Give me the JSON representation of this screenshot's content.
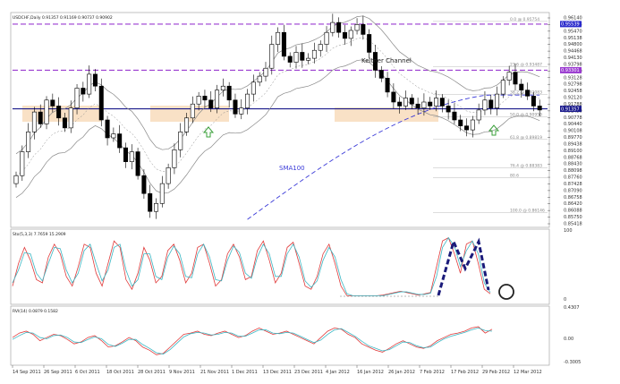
{
  "chart_data": [
    {
      "type": "candlestick",
      "title": "USDCHF,Daily  0.91357 0.91169 0.90737 0.90902",
      "y_ticks": [
        "0.96140",
        "0.95808",
        "0.95470",
        "0.95138",
        "0.94800",
        "0.94468",
        "0.94130",
        "0.93798",
        "0.93460",
        "0.93128",
        "0.92798",
        "0.92458",
        "0.92120",
        "0.91788",
        "0.91450",
        "0.90778",
        "0.90440",
        "0.90108",
        "0.89770",
        "0.89438",
        "0.89100",
        "0.88768",
        "0.88430",
        "0.88098",
        "0.87760",
        "0.87428",
        "0.87090",
        "0.86758",
        "0.86420",
        "0.86088",
        "0.85750",
        "0.85418"
      ],
      "ylim": [
        0.854,
        0.962
      ],
      "price_labels": [
        {
          "text": "0.95539",
          "color": "#2b2bcc"
        },
        {
          "text": "0.93301",
          "color": "#9a3bd0"
        },
        {
          "text": "0.91357",
          "color": "#1b1b8c"
        }
      ],
      "fib_levels": [
        {
          "label": "0.0 @ 0.95754",
          "value": 0.95754
        },
        {
          "label": "23.6 @ 0.93487",
          "value": 0.93487
        },
        {
          "label": "38.2 @ 0.92083",
          "value": 0.92083
        },
        {
          "label": "50.0 @ 0.90950",
          "value": 0.9095
        },
        {
          "label": "61.8 @ 0.89819",
          "value": 0.89819
        },
        {
          "label": "76.4 @ 0.88383",
          "value": 0.88383
        },
        {
          "label": "80.6",
          "value": 0.879
        },
        {
          "label": "100.0 @ 0.86146",
          "value": 0.86146
        }
      ],
      "horizontal_lines": [
        {
          "name": "upper-dashed",
          "value": 0.9562,
          "color": "#9a3bd0"
        },
        {
          "name": "middle-dashed",
          "value": 0.933,
          "color": "#9a3bd0"
        },
        {
          "name": "solid-support",
          "value": 0.9136,
          "color": "#1b1b8c"
        }
      ],
      "annotations": {
        "keltner": "Keltner Channel",
        "sma": "SMA100"
      },
      "series": {
        "close": [
          0.88,
          0.892,
          0.902,
          0.912,
          0.906,
          0.918,
          0.915,
          0.909,
          0.904,
          0.914,
          0.924,
          0.921,
          0.931,
          0.925,
          0.908,
          0.899,
          0.901,
          0.894,
          0.887,
          0.892,
          0.88,
          0.871,
          0.862,
          0.866,
          0.876,
          0.884,
          0.893,
          0.902,
          0.909,
          0.916,
          0.92,
          0.918,
          0.914,
          0.923,
          0.925,
          0.918,
          0.911,
          0.914,
          0.921,
          0.927,
          0.93,
          0.934,
          0.946,
          0.952,
          0.94,
          0.937,
          0.942,
          0.938,
          0.939,
          0.943,
          0.946,
          0.952,
          0.957,
          0.952,
          0.949,
          0.953,
          0.956,
          0.951,
          0.942,
          0.933,
          0.929,
          0.922,
          0.917,
          0.915,
          0.919,
          0.916,
          0.914,
          0.917,
          0.915,
          0.919,
          0.915,
          0.912,
          0.908,
          0.905,
          0.903,
          0.908,
          0.913,
          0.918,
          0.914,
          0.921,
          0.928,
          0.932,
          0.926,
          0.923,
          0.92,
          0.915,
          0.913
        ]
      }
    },
    {
      "type": "line",
      "title": "Sto(5,3,3) 7.7659 15.2909",
      "y_ticks": [
        "100",
        "0"
      ],
      "ylim": [
        0,
        100
      ],
      "series": [
        {
          "values": [
            20,
            55,
            80,
            60,
            30,
            25,
            65,
            85,
            70,
            35,
            20,
            50,
            85,
            80,
            40,
            20,
            55,
            90,
            80,
            30,
            15,
            40,
            80,
            60,
            25,
            35,
            75,
            85,
            60,
            25,
            40,
            80,
            85,
            55,
            20,
            30,
            70,
            85,
            65,
            30,
            35,
            75,
            90,
            60,
            25,
            40,
            80,
            88,
            55,
            20,
            15,
            35,
            70,
            85,
            55,
            20,
            5,
            5,
            5,
            5,
            5,
            5,
            6,
            8,
            10,
            12,
            10,
            8,
            6,
            8,
            10,
            50,
            90,
            95,
            70,
            40,
            85,
            90,
            55,
            15,
            8
          ]
        },
        {
          "values": [
            25,
            45,
            72,
            70,
            40,
            28,
            55,
            80,
            78,
            45,
            25,
            40,
            75,
            85,
            55,
            28,
            45,
            80,
            85,
            45,
            20,
            30,
            70,
            70,
            35,
            30,
            65,
            82,
            70,
            35,
            33,
            70,
            85,
            65,
            30,
            28,
            60,
            82,
            72,
            40,
            32,
            65,
            85,
            70,
            35,
            35,
            70,
            85,
            65,
            28,
            18,
            28,
            60,
            80,
            65,
            30,
            8,
            5,
            5,
            5,
            5,
            5,
            5,
            7,
            9,
            11,
            11,
            9,
            7,
            7,
            9,
            35,
            80,
            95,
            82,
            50,
            75,
            90,
            70,
            25,
            10
          ]
        }
      ]
    },
    {
      "type": "line",
      "title": "RVI(14) 0.0879 0.1582",
      "y_ticks": [
        "0.4307",
        "0.00",
        "-0.3005"
      ],
      "ylim": [
        -0.3005,
        0.4307
      ],
      "series": [
        {
          "values": [
            0.05,
            0.12,
            0.15,
            0.1,
            0.0,
            0.05,
            0.1,
            0.08,
            0.02,
            -0.05,
            -0.02,
            0.05,
            0.08,
            0.0,
            -0.1,
            -0.08,
            -0.02,
            0.05,
            0.0,
            -0.1,
            -0.15,
            -0.22,
            -0.2,
            -0.1,
            0.0,
            0.1,
            0.12,
            0.15,
            0.1,
            0.08,
            0.12,
            0.15,
            0.1,
            0.05,
            0.08,
            0.15,
            0.2,
            0.15,
            0.1,
            0.12,
            0.15,
            0.1,
            0.05,
            0.0,
            -0.05,
            0.05,
            0.15,
            0.2,
            0.18,
            0.1,
            0.05,
            -0.05,
            -0.1,
            -0.15,
            -0.18,
            -0.12,
            -0.05,
            0.0,
            -0.05,
            -0.1,
            -0.12,
            -0.08,
            0.0,
            0.05,
            0.1,
            0.12,
            0.15,
            0.2,
            0.22,
            0.12,
            0.18
          ]
        },
        {
          "values": [
            0.02,
            0.08,
            0.13,
            0.12,
            0.05,
            0.03,
            0.08,
            0.09,
            0.05,
            -0.02,
            -0.03,
            0.02,
            0.06,
            0.03,
            -0.06,
            -0.09,
            -0.04,
            0.02,
            0.02,
            -0.06,
            -0.12,
            -0.19,
            -0.21,
            -0.14,
            -0.04,
            0.06,
            0.11,
            0.13,
            0.12,
            0.09,
            0.1,
            0.13,
            0.12,
            0.07,
            0.07,
            0.12,
            0.17,
            0.17,
            0.12,
            0.11,
            0.13,
            0.12,
            0.07,
            0.02,
            -0.03,
            0.01,
            0.1,
            0.17,
            0.19,
            0.13,
            0.07,
            -0.01,
            -0.08,
            -0.12,
            -0.16,
            -0.14,
            -0.08,
            -0.02,
            -0.03,
            -0.08,
            -0.11,
            -0.1,
            -0.03,
            0.03,
            0.07,
            0.1,
            0.13,
            0.17,
            0.2,
            0.16,
            0.15
          ]
        }
      ]
    }
  ],
  "x_axis_labels": [
    "14 Sep 2011",
    "26 Sep 2011",
    "6 Oct 2011",
    "18 Oct 2011",
    "28 Oct 2011",
    "9 Nov 2011",
    "21 Nov 2011",
    "1 Dec 2011",
    "13 Dec 2011",
    "23 Dec 2011",
    "4 Jan 2012",
    "16 Jan 2012",
    "26 Jan 2012",
    "7 Feb 2012",
    "17 Feb 2012",
    "29 Feb 2012",
    "12 Mar 2012"
  ],
  "colors": {
    "bull": "#000000",
    "bear": "#000000",
    "keltner": "#888888",
    "sma": "#3a3ad8",
    "sto_main": "#e03a3a",
    "sto_signal": "#3ab7c4",
    "pattern": "#1a1a7a",
    "arrow": "#3aa03a",
    "zone": "#f8d9b8",
    "fib": "#bbbbbb"
  }
}
